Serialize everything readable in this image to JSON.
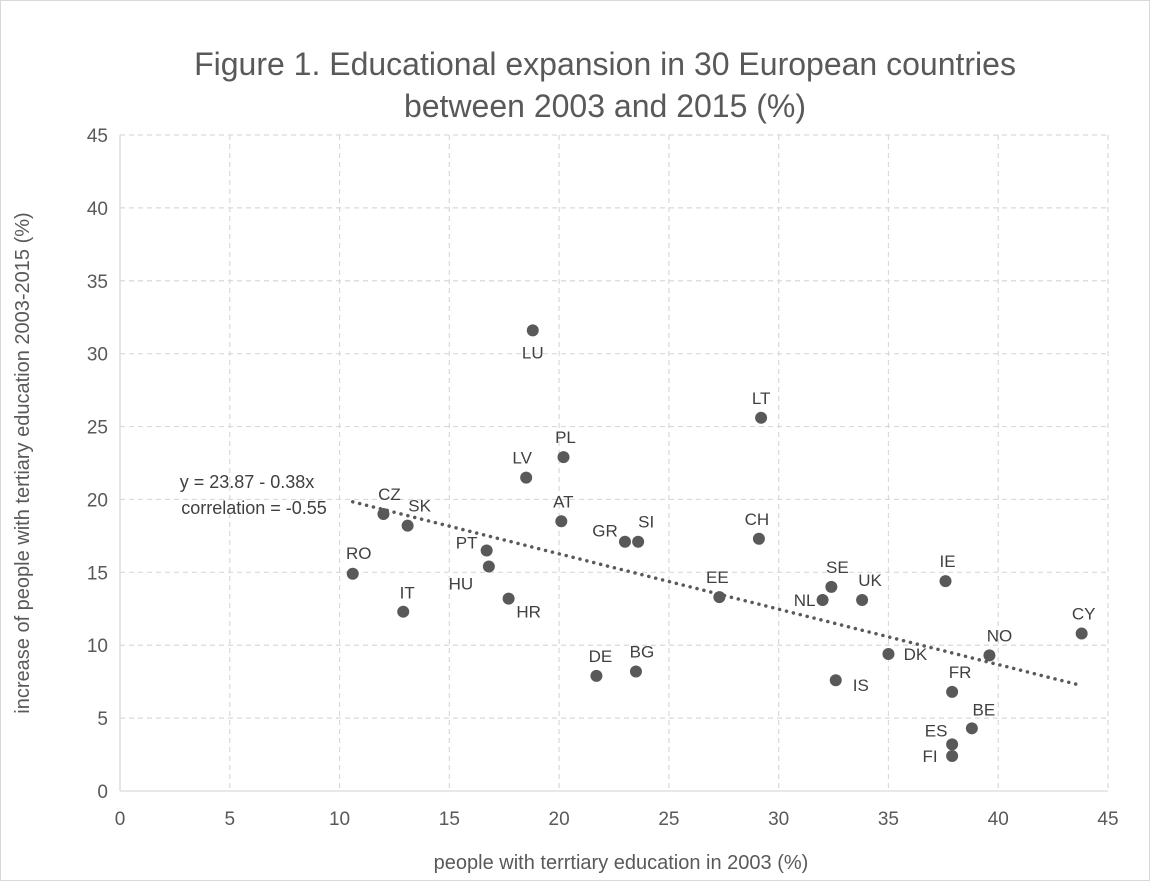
{
  "chart_data": {
    "type": "scatter",
    "title_line1": "Figure 1. Educational expansion in 30 European countries",
    "title_line2": "between 2003 and 2015 (%)",
    "xlabel": "people with terrtiary education in 2003 (%)",
    "ylabel": "increase of people with tertiary education 2003-2015 (%)",
    "xlim": [
      0,
      45
    ],
    "ylim": [
      0,
      45
    ],
    "xticks": [
      0,
      5,
      10,
      15,
      20,
      25,
      30,
      35,
      40,
      45
    ],
    "yticks": [
      0,
      5,
      10,
      15,
      20,
      25,
      30,
      35,
      40,
      45
    ],
    "grid": true,
    "gridStyle": "dashed",
    "markerColor": "#595959",
    "trendlineColor": "#595959",
    "points": [
      {
        "label": "LU",
        "x": 18.8,
        "y": 31.6
      },
      {
        "label": "LT",
        "x": 29.2,
        "y": 25.6
      },
      {
        "label": "PL",
        "x": 20.2,
        "y": 22.9
      },
      {
        "label": "LV",
        "x": 18.5,
        "y": 21.5
      },
      {
        "label": "CZ",
        "x": 12.0,
        "y": 19.0
      },
      {
        "label": "SK",
        "x": 13.1,
        "y": 18.2
      },
      {
        "label": "AT",
        "x": 20.1,
        "y": 18.5
      },
      {
        "label": "GR",
        "x": 23.0,
        "y": 17.1
      },
      {
        "label": "SI",
        "x": 23.6,
        "y": 17.1
      },
      {
        "label": "CH",
        "x": 29.1,
        "y": 17.3
      },
      {
        "label": "PT",
        "x": 16.7,
        "y": 16.5
      },
      {
        "label": "HU",
        "x": 16.8,
        "y": 15.4
      },
      {
        "label": "RO",
        "x": 10.6,
        "y": 14.9
      },
      {
        "label": "IE",
        "x": 37.6,
        "y": 14.4
      },
      {
        "label": "SE",
        "x": 32.4,
        "y": 14.0
      },
      {
        "label": "EE",
        "x": 27.3,
        "y": 13.3
      },
      {
        "label": "HR",
        "x": 17.7,
        "y": 13.2
      },
      {
        "label": "NL",
        "x": 32.0,
        "y": 13.1
      },
      {
        "label": "UK",
        "x": 33.8,
        "y": 13.1
      },
      {
        "label": "IT",
        "x": 12.9,
        "y": 12.3
      },
      {
        "label": "CY",
        "x": 43.8,
        "y": 10.8
      },
      {
        "label": "DK",
        "x": 35.0,
        "y": 9.4
      },
      {
        "label": "NO",
        "x": 39.6,
        "y": 9.3
      },
      {
        "label": "BG",
        "x": 23.5,
        "y": 8.2
      },
      {
        "label": "DE",
        "x": 21.7,
        "y": 7.9
      },
      {
        "label": "IS",
        "x": 32.6,
        "y": 7.6
      },
      {
        "label": "FR",
        "x": 37.9,
        "y": 6.8
      },
      {
        "label": "BE",
        "x": 38.8,
        "y": 4.3
      },
      {
        "label": "ES",
        "x": 37.9,
        "y": 3.2
      },
      {
        "label": "FI",
        "x": 37.9,
        "y": 2.4
      }
    ],
    "trendline": {
      "x1": 10.6,
      "y1": 19.84,
      "x2": 43.8,
      "y2": 7.23
    },
    "annotation": {
      "line1": "y = 23.87  - 0.38x",
      "line2": "correlation = -0.55"
    }
  }
}
